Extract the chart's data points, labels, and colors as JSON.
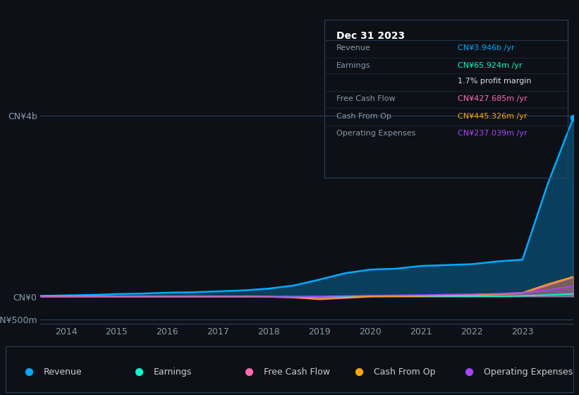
{
  "background_color": "#0d1117",
  "plot_bg_color": "#0d1117",
  "grid_color": "#1e2d3d",
  "text_color": "#8899aa",
  "title_color": "#ffffff",
  "years": [
    2013.5,
    2014,
    2014.5,
    2015,
    2015.5,
    2016,
    2016.5,
    2017,
    2017.5,
    2018,
    2018.5,
    2019,
    2019.5,
    2020,
    2020.5,
    2021,
    2021.5,
    2022,
    2022.5,
    2023,
    2023.5,
    2024.0
  ],
  "revenue": [
    0.02,
    0.03,
    0.04,
    0.06,
    0.07,
    0.09,
    0.1,
    0.12,
    0.14,
    0.18,
    0.25,
    0.38,
    0.52,
    0.6,
    0.62,
    0.68,
    0.7,
    0.72,
    0.78,
    0.82,
    2.5,
    3.946
  ],
  "earnings": [
    0.005,
    0.005,
    0.005,
    0.005,
    0.005,
    0.005,
    0.005,
    0.005,
    0.005,
    0.005,
    0.005,
    0.005,
    0.005,
    0.005,
    0.005,
    0.005,
    0.005,
    0.005,
    0.01,
    0.02,
    0.04,
    0.066
  ],
  "free_cash_flow": [
    0.005,
    0.005,
    0.005,
    0.005,
    0.005,
    0.003,
    0.003,
    0.003,
    0.003,
    -0.005,
    -0.02,
    -0.06,
    -0.03,
    0.0,
    0.01,
    0.015,
    0.02,
    0.025,
    0.05,
    0.08,
    0.25,
    0.427
  ],
  "cash_from_op": [
    0.005,
    0.005,
    0.005,
    0.005,
    0.005,
    0.005,
    0.005,
    0.005,
    0.005,
    0.003,
    -0.01,
    -0.03,
    -0.02,
    0.01,
    0.015,
    0.02,
    0.03,
    0.035,
    0.06,
    0.09,
    0.28,
    0.445
  ],
  "op_expenses": [
    -0.005,
    -0.005,
    -0.005,
    -0.005,
    -0.005,
    -0.005,
    -0.005,
    -0.005,
    -0.005,
    -0.005,
    -0.005,
    0.01,
    0.02,
    0.03,
    0.035,
    0.04,
    0.05,
    0.06,
    0.07,
    0.09,
    0.15,
    0.237
  ],
  "revenue_color": "#00aaff",
  "earnings_color": "#00ffcc",
  "fcf_color": "#ff69b4",
  "cfop_color": "#ffaa00",
  "opex_color": "#aa44ff",
  "ylim_min": -0.6,
  "ylim_max": 4.2,
  "yticks": [
    -0.5,
    0,
    4.0
  ],
  "ytick_labels": [
    "-CN¥500m",
    "CN¥0",
    "CN¥4b"
  ],
  "xlabel_years": [
    2014,
    2015,
    2016,
    2017,
    2018,
    2019,
    2020,
    2021,
    2022,
    2023
  ],
  "tooltip_title": "Dec 31 2023",
  "tooltip_rows": [
    {
      "label": "Revenue",
      "value": "CN¥3.946b /yr",
      "color": "#00aaff"
    },
    {
      "label": "Earnings",
      "value": "CN¥65.924m /yr",
      "color": "#00ffcc"
    },
    {
      "label": "",
      "value": "1.7% profit margin",
      "color": "#dddddd"
    },
    {
      "label": "Free Cash Flow",
      "value": "CN¥427.685m /yr",
      "color": "#ff69b4"
    },
    {
      "label": "Cash From Op",
      "value": "CN¥445.326m /yr",
      "color": "#ffaa00"
    },
    {
      "label": "Operating Expenses",
      "value": "CN¥237.039m /yr",
      "color": "#aa44ff"
    }
  ],
  "legend_items": [
    {
      "label": "Revenue",
      "color": "#00aaff"
    },
    {
      "label": "Earnings",
      "color": "#00ffcc"
    },
    {
      "label": "Free Cash Flow",
      "color": "#ff69b4"
    },
    {
      "label": "Cash From Op",
      "color": "#ffaa00"
    },
    {
      "label": "Operating Expenses",
      "color": "#aa44ff"
    }
  ]
}
